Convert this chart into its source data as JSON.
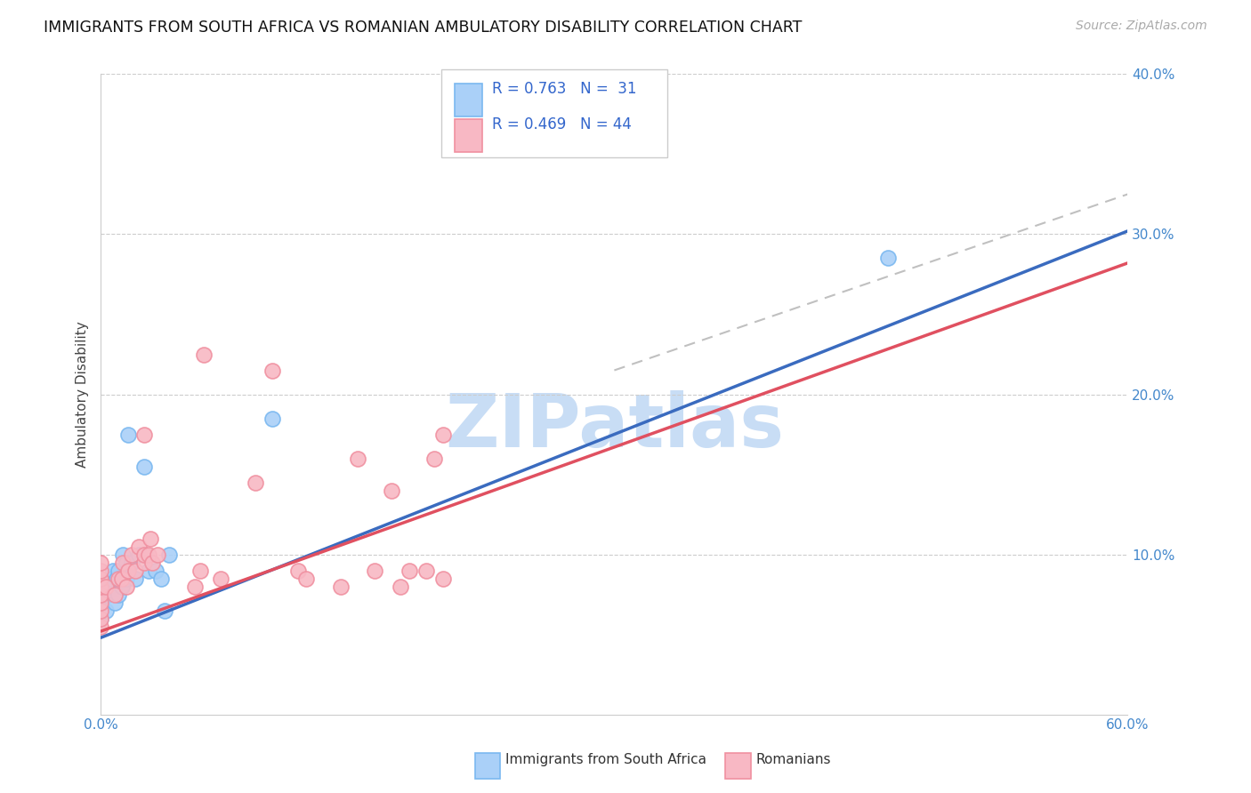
{
  "title": "IMMIGRANTS FROM SOUTH AFRICA VS ROMANIAN AMBULATORY DISABILITY CORRELATION CHART",
  "source": "Source: ZipAtlas.com",
  "ylabel": "Ambulatory Disability",
  "xlim": [
    0.0,
    0.6
  ],
  "ylim": [
    0.0,
    0.4
  ],
  "color_blue": "#7ab8f0",
  "color_pink": "#f090a0",
  "color_blue_line": "#3a6bbf",
  "color_pink_line": "#e05060",
  "color_blue_fill": "#aad0f8",
  "color_pink_fill": "#f8b8c4",
  "color_dashed": "#c0c0c0",
  "legend_r1": "R = 0.763",
  "legend_n1": "N =  31",
  "legend_r2": "R = 0.469",
  "legend_n2": "N = 44",
  "watermark_color": "#c8ddf5",
  "blue_x": [
    0.0,
    0.0,
    0.0,
    0.0,
    0.0,
    0.003,
    0.004,
    0.005,
    0.006,
    0.007,
    0.008,
    0.009,
    0.01,
    0.01,
    0.012,
    0.013,
    0.015,
    0.015,
    0.016,
    0.018,
    0.02,
    0.022,
    0.025,
    0.026,
    0.028,
    0.032,
    0.035,
    0.037,
    0.04,
    0.1,
    0.46
  ],
  "blue_y": [
    0.06,
    0.065,
    0.07,
    0.075,
    0.08,
    0.065,
    0.075,
    0.08,
    0.085,
    0.09,
    0.07,
    0.085,
    0.075,
    0.09,
    0.08,
    0.1,
    0.085,
    0.095,
    0.175,
    0.095,
    0.085,
    0.1,
    0.155,
    0.1,
    0.09,
    0.09,
    0.085,
    0.065,
    0.1,
    0.185,
    0.285
  ],
  "pink_x": [
    0.0,
    0.0,
    0.0,
    0.0,
    0.0,
    0.0,
    0.0,
    0.0,
    0.0,
    0.003,
    0.008,
    0.01,
    0.012,
    0.013,
    0.015,
    0.016,
    0.018,
    0.02,
    0.022,
    0.025,
    0.025,
    0.025,
    0.028,
    0.029,
    0.03,
    0.033,
    0.055,
    0.058,
    0.06,
    0.07,
    0.09,
    0.1,
    0.115,
    0.12,
    0.14,
    0.15,
    0.16,
    0.17,
    0.175,
    0.18,
    0.19,
    0.195,
    0.2,
    0.2
  ],
  "pink_y": [
    0.055,
    0.06,
    0.065,
    0.07,
    0.075,
    0.08,
    0.085,
    0.09,
    0.095,
    0.08,
    0.075,
    0.085,
    0.085,
    0.095,
    0.08,
    0.09,
    0.1,
    0.09,
    0.105,
    0.095,
    0.1,
    0.175,
    0.1,
    0.11,
    0.095,
    0.1,
    0.08,
    0.09,
    0.225,
    0.085,
    0.145,
    0.215,
    0.09,
    0.085,
    0.08,
    0.16,
    0.09,
    0.14,
    0.08,
    0.09,
    0.09,
    0.16,
    0.085,
    0.175
  ],
  "blue_line_x": [
    0.0,
    0.6
  ],
  "blue_line_y": [
    0.048,
    0.302
  ],
  "pink_line_x": [
    0.0,
    0.6
  ],
  "pink_line_y": [
    0.052,
    0.282
  ],
  "dashed_line_x": [
    0.3,
    0.6
  ],
  "dashed_line_y": [
    0.215,
    0.325
  ]
}
